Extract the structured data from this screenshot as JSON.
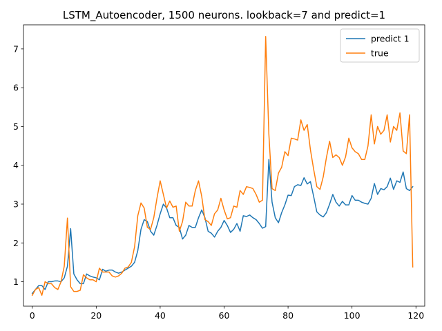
{
  "chart_data": {
    "type": "line",
    "title": "LSTM_Autoencoder, 1500 neurons. lookback=7 and predict=1",
    "xlabel": "",
    "ylabel": "",
    "xlim": [
      -2.75,
      122.75
    ],
    "ylim": [
      0.37,
      7.62
    ],
    "xticks": [
      0,
      20,
      40,
      60,
      80,
      100,
      120
    ],
    "yticks": [
      1,
      2,
      3,
      4,
      5,
      6,
      7
    ],
    "grid": false,
    "legend": "top-right",
    "series": [
      {
        "name": "predict 1",
        "color": "#1f77b4",
        "values": [
          0.7,
          0.8,
          0.9,
          0.9,
          0.8,
          1.0,
          1.0,
          1.02,
          1.02,
          1.0,
          1.1,
          1.4,
          2.37,
          1.2,
          1.05,
          0.95,
          0.95,
          1.2,
          1.15,
          1.12,
          1.1,
          1.05,
          1.32,
          1.27,
          1.3,
          1.3,
          1.25,
          1.22,
          1.25,
          1.3,
          1.35,
          1.4,
          1.5,
          1.8,
          2.35,
          2.6,
          2.55,
          2.3,
          2.2,
          2.45,
          2.75,
          3.0,
          2.9,
          2.65,
          2.65,
          2.45,
          2.4,
          2.1,
          2.2,
          2.45,
          2.4,
          2.4,
          2.65,
          2.85,
          2.65,
          2.3,
          2.25,
          2.15,
          2.3,
          2.4,
          2.58,
          2.45,
          2.27,
          2.35,
          2.5,
          2.3,
          2.7,
          2.68,
          2.72,
          2.65,
          2.6,
          2.5,
          2.38,
          2.42,
          4.15,
          3.05,
          2.65,
          2.52,
          2.78,
          2.98,
          3.23,
          3.22,
          3.45,
          3.5,
          3.48,
          3.68,
          3.52,
          3.58,
          3.2,
          2.8,
          2.72,
          2.67,
          2.78,
          3.0,
          3.25,
          3.05,
          2.95,
          3.07,
          2.98,
          2.98,
          3.22,
          3.1,
          3.1,
          3.05,
          3.02,
          3.0,
          3.15,
          3.53,
          3.25,
          3.4,
          3.37,
          3.45,
          3.67,
          3.38,
          3.6,
          3.56,
          3.83,
          3.4,
          3.35,
          3.45
        ]
      },
      {
        "name": "true",
        "color": "#ff7f0e",
        "values": [
          0.65,
          0.8,
          0.85,
          0.65,
          1.0,
          0.95,
          0.95,
          0.85,
          0.8,
          1.0,
          1.4,
          2.64,
          0.87,
          0.75,
          0.75,
          0.78,
          1.18,
          1.1,
          1.05,
          1.05,
          1.0,
          1.35,
          1.25,
          1.25,
          1.25,
          1.15,
          1.12,
          1.15,
          1.22,
          1.35,
          1.38,
          1.5,
          1.9,
          2.7,
          3.03,
          2.9,
          2.4,
          2.35,
          2.65,
          3.15,
          3.6,
          3.25,
          2.9,
          3.08,
          2.92,
          2.95,
          2.3,
          2.55,
          3.05,
          2.95,
          2.95,
          3.35,
          3.6,
          3.2,
          2.6,
          2.55,
          2.45,
          2.75,
          2.85,
          3.15,
          2.85,
          2.62,
          2.65,
          2.95,
          2.92,
          3.35,
          3.25,
          3.45,
          3.43,
          3.4,
          3.25,
          3.05,
          3.1,
          7.32,
          4.8,
          3.4,
          3.35,
          3.8,
          3.95,
          4.35,
          4.25,
          4.7,
          4.68,
          4.65,
          5.17,
          4.9,
          5.05,
          4.4,
          3.9,
          3.45,
          3.38,
          3.7,
          4.2,
          4.62,
          4.2,
          4.27,
          4.2,
          4.0,
          4.22,
          4.7,
          4.45,
          4.35,
          4.3,
          4.15,
          4.15,
          4.5,
          5.3,
          4.55,
          5.0,
          4.8,
          4.9,
          5.3,
          4.6,
          5.0,
          4.9,
          5.35,
          4.37,
          4.3,
          5.3,
          1.38
        ]
      }
    ]
  }
}
